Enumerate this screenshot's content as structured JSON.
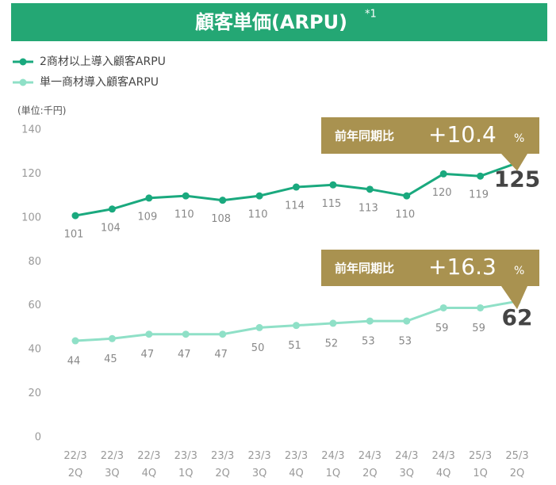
{
  "chart_data": {
    "type": "line",
    "title": "顧客単価(ARPU)",
    "title_note": "*1",
    "y_axis_label": "(単位:千円)",
    "categories": [
      "22/3 2Q",
      "22/3 3Q",
      "22/3 4Q",
      "23/3 1Q",
      "23/3 2Q",
      "23/3 3Q",
      "23/3 4Q",
      "24/3 1Q",
      "24/3 2Q",
      "24/3 3Q",
      "24/3 4Q",
      "25/3 1Q",
      "25/3 2Q"
    ],
    "series": [
      {
        "name": "2商材以上導入顧客ARPU",
        "color": "#1aa97e",
        "values": [
          101,
          104,
          109,
          110,
          108,
          110,
          114,
          115,
          113,
          110,
          120,
          119,
          125
        ]
      },
      {
        "name": "単一商材導入顧客ARPU",
        "color": "#8fe0c7",
        "values": [
          44,
          45,
          47,
          47,
          47,
          50,
          51,
          52,
          53,
          53,
          59,
          59,
          62
        ]
      }
    ],
    "annotations": [
      {
        "label": "前年同期比",
        "change": "+10.4",
        "unit": "%"
      },
      {
        "label": "前年同期比",
        "change": "+16.3",
        "unit": "%"
      }
    ],
    "ylim": [
      0,
      140
    ],
    "yticks": [
      0,
      20,
      40,
      60,
      80,
      100,
      120,
      140
    ],
    "grid": false
  }
}
